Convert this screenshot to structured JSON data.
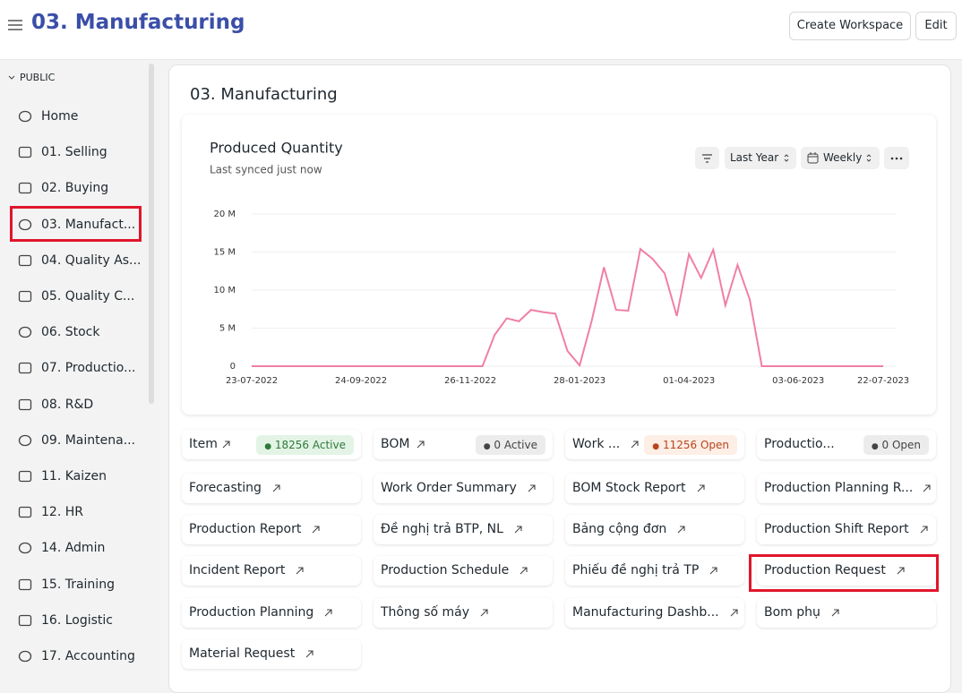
{
  "header": {
    "title": "03. Manufacturing",
    "buttons": [
      "Create Workspace",
      "Edit"
    ]
  },
  "sidebar": {
    "section": "PUBLIC",
    "items": [
      "Home",
      "01. Selling",
      "02. Buying",
      "03. Manufact...",
      "04. Quality As...",
      "05. Quality C...",
      "06. Stock",
      "07. Productio...",
      "08. R&D",
      "09. Maintena...",
      "11. Kaizen",
      "12. HR",
      "14. Admin",
      "15. Training",
      "16. Logistic",
      "17. Accounting"
    ]
  },
  "page": {
    "title": "03. Manufacturing"
  },
  "chart_card": {
    "filters": [
      "Last Year",
      "Weekly"
    ]
  },
  "chart_data": {
    "type": "line",
    "title": "Produced Quantity",
    "subtitle": "Last synced just now",
    "color": "#f07fa6",
    "categories": [
      "23-07-2022",
      null,
      null,
      null,
      null,
      null,
      null,
      null,
      null,
      "24-09-2022",
      null,
      null,
      null,
      null,
      null,
      null,
      null,
      null,
      "26-11-2022",
      null,
      null,
      null,
      null,
      null,
      null,
      null,
      null,
      "28-01-2023",
      null,
      null,
      null,
      null,
      null,
      null,
      null,
      null,
      "01-04-2023",
      null,
      null,
      null,
      null,
      null,
      null,
      null,
      null,
      "03-06-2023",
      null,
      null,
      null,
      null,
      null,
      null,
      "22-07-2023"
    ],
    "values": [
      0,
      0,
      0,
      0,
      0,
      0,
      0,
      0,
      0,
      0,
      0,
      0,
      0,
      0,
      0,
      0,
      0,
      0,
      0,
      0,
      4100000,
      6300000,
      5900000,
      7400000,
      7100000,
      6900000,
      2000000,
      100000,
      6000000,
      13000000,
      7400000,
      7300000,
      15400000,
      14100000,
      12200000,
      6600000,
      14700000,
      11600000,
      15300000,
      8000000,
      13300000,
      8800000,
      0,
      0,
      0,
      0,
      0,
      0,
      0,
      0,
      0,
      0,
      0
    ],
    "ylim": [
      0,
      20000000
    ],
    "yticks": [
      0,
      {
        "value": 5000000,
        "label": "5 M"
      },
      {
        "value": 10000000,
        "label": "10 M"
      },
      {
        "value": 15000000,
        "label": "15 M"
      },
      {
        "value": 20000000,
        "label": "20 M"
      }
    ],
    "grid": true
  },
  "number_cards": [
    {
      "label": "Item",
      "badge": "18256 Active"
    },
    {
      "label": "BOM",
      "badge": "0 Active"
    },
    {
      "label": "Work ...",
      "badge": "11256 Open"
    },
    {
      "label": "Productio...",
      "badge": "0 Open"
    }
  ],
  "shortcuts": [
    "Forecasting",
    "Work Order Summary",
    "BOM Stock Report",
    "Production Planning R...",
    "Production Report",
    "Đề nghị trả BTP, NL",
    "Bảng cộng đơn",
    "Production Shift Report",
    "Incident Report",
    "Production Schedule",
    "Phiếu đề nghị trả TP",
    "Production Request",
    "Production Planning",
    "Thông số máy",
    "Manufacturing Dashb...",
    "Bom phụ",
    "Material Request"
  ]
}
